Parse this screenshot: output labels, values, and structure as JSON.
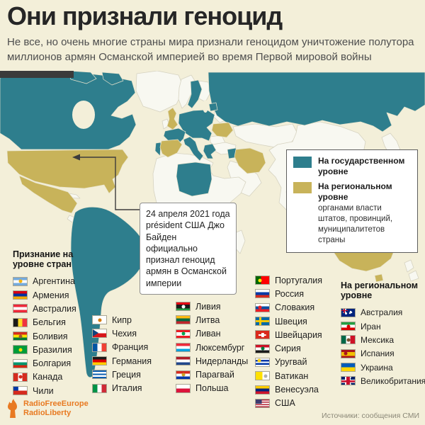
{
  "header": {
    "title": "Они признали геноцид",
    "subtitle": "Не все, но очень многие страны мира признали геноцидом уничтожение полутора миллионов армян Османской империей во время Первой мировой войны"
  },
  "legend": {
    "state": {
      "label": "На государственном уровне",
      "color": "#2e7e8d"
    },
    "regional": {
      "label": "На региональном уровне",
      "sub": "органами власти штатов, провинций, муниципалитетов страны",
      "color": "#c8b35a"
    }
  },
  "annotation": {
    "text": "24 апреля 2021 года président США Джо Байден официально признал геноцид армян в Османской империи"
  },
  "lists": {
    "country_level": {
      "header": "Признание на уровне стран",
      "col1": [
        {
          "label": "Аргентина",
          "flag": {
            "type": "h",
            "colors": [
              "#75aadb",
              "#ffffff",
              "#75aadb"
            ],
            "emblem": "#f6b40e"
          }
        },
        {
          "label": "Армения",
          "flag": {
            "type": "h",
            "colors": [
              "#d90012",
              "#0033a0",
              "#f2a800"
            ]
          }
        },
        {
          "label": "Австралия",
          "flag": {
            "type": "h",
            "colors": [
              "#ed2939",
              "#ffffff",
              "#ed2939"
            ]
          }
        },
        {
          "label": "Бельгия",
          "flag": {
            "type": "v",
            "colors": [
              "#1a1a1a",
              "#fdda24",
              "#ef3340"
            ]
          }
        },
        {
          "label": "Боливия",
          "flag": {
            "type": "h",
            "colors": [
              "#d52b1e",
              "#f9e300",
              "#007934"
            ],
            "emblem": "#a05a2c"
          }
        },
        {
          "label": "Бразилия",
          "flag": {
            "type": "solid",
            "colors": [
              "#009b3a"
            ],
            "emblem": "#fedf00"
          }
        },
        {
          "label": "Болгария",
          "flag": {
            "type": "h",
            "colors": [
              "#ffffff",
              "#00966e",
              "#d62612"
            ]
          }
        },
        {
          "label": "Канада",
          "flag": {
            "type": "v",
            "colors": [
              "#d52b1e",
              "#ffffff",
              "#d52b1e"
            ],
            "emblem": "#d52b1e"
          }
        },
        {
          "label": "Чили",
          "flag": {
            "type": "chile",
            "colors": [
              "#ffffff",
              "#d52b1e"
            ],
            "canton": "#0039a6"
          }
        }
      ],
      "col2": [
        {
          "label": "Кипр",
          "flag": {
            "type": "solid",
            "colors": [
              "#ffffff"
            ],
            "emblem": "#d57800"
          }
        },
        {
          "label": "Чехия",
          "flag": {
            "type": "cz",
            "colors": [
              "#ffffff",
              "#d7141a"
            ],
            "canton": "#11457e"
          }
        },
        {
          "label": "Франция",
          "flag": {
            "type": "v",
            "colors": [
              "#0055a4",
              "#ffffff",
              "#ef4135"
            ]
          }
        },
        {
          "label": "Германия",
          "flag": {
            "type": "h",
            "colors": [
              "#1a1a1a",
              "#dd0000",
              "#ffce00"
            ]
          }
        },
        {
          "label": "Греция",
          "flag": {
            "type": "h",
            "colors": [
              "#0d5eaf",
              "#ffffff",
              "#0d5eaf",
              "#ffffff",
              "#0d5eaf"
            ]
          }
        },
        {
          "label": "Италия",
          "flag": {
            "type": "v",
            "colors": [
              "#009246",
              "#ffffff",
              "#ce2b37"
            ]
          }
        }
      ],
      "col3": [
        {
          "label": "Ливия",
          "flag": {
            "type": "h",
            "colors": [
              "#e70013",
              "#1a1a1a",
              "#239e46"
            ],
            "weights": [
              1,
              2,
              1
            ],
            "emblem": "#ffffff"
          }
        },
        {
          "label": "Литва",
          "flag": {
            "type": "h",
            "colors": [
              "#fdb913",
              "#006a44",
              "#c1272d"
            ]
          }
        },
        {
          "label": "Ливан",
          "flag": {
            "type": "h",
            "colors": [
              "#ed1c24",
              "#ffffff",
              "#ed1c24"
            ],
            "weights": [
              1,
              2,
              1
            ],
            "emblem": "#00a651"
          }
        },
        {
          "label": "Люксембург",
          "flag": {
            "type": "h",
            "colors": [
              "#ed2939",
              "#ffffff",
              "#00a1de"
            ]
          }
        },
        {
          "label": "Нидерланды",
          "flag": {
            "type": "h",
            "colors": [
              "#ae1c28",
              "#ffffff",
              "#21468b"
            ]
          }
        },
        {
          "label": "Парагвай",
          "flag": {
            "type": "h",
            "colors": [
              "#d52b1e",
              "#ffffff",
              "#0038a8"
            ],
            "emblem": "#c9a227"
          }
        },
        {
          "label": "Польша",
          "flag": {
            "type": "h",
            "colors": [
              "#ffffff",
              "#dc143c"
            ]
          }
        }
      ],
      "col4": [
        {
          "label": "Португалия",
          "flag": {
            "type": "v",
            "colors": [
              "#006600",
              "#ff0000"
            ],
            "weights": [
              2,
              3
            ],
            "emblem": "#ffe500",
            "emblemPos": "left"
          }
        },
        {
          "label": "Россия",
          "flag": {
            "type": "h",
            "colors": [
              "#ffffff",
              "#0039a6",
              "#d52b1e"
            ]
          }
        },
        {
          "label": "Словакия",
          "flag": {
            "type": "h",
            "colors": [
              "#ffffff",
              "#0b4ea2",
              "#ee1c25"
            ],
            "emblem": "#ee1c25",
            "emblemPos": "left"
          }
        },
        {
          "label": "Швеция",
          "flag": {
            "type": "cross",
            "colors": [
              "#006aa7",
              "#fecc00"
            ]
          }
        },
        {
          "label": "Швейцария",
          "flag": {
            "type": "plus",
            "colors": [
              "#da291c",
              "#ffffff"
            ]
          }
        },
        {
          "label": "Сирия",
          "flag": {
            "type": "h",
            "colors": [
              "#ce1126",
              "#ffffff",
              "#1a1a1a"
            ],
            "emblem": "#007a3d"
          }
        },
        {
          "label": "Уругвай",
          "flag": {
            "type": "h",
            "colors": [
              "#ffffff",
              "#0038a8",
              "#ffffff",
              "#0038a8",
              "#ffffff"
            ],
            "emblem": "#fcd116",
            "emblemPos": "tl"
          }
        },
        {
          "label": "Ватикан",
          "flag": {
            "type": "v",
            "colors": [
              "#ffe000",
              "#ffffff"
            ],
            "emblem": "#b0b0b0",
            "emblemPos": "right"
          }
        },
        {
          "label": "Венесуэла",
          "flag": {
            "type": "h",
            "colors": [
              "#ffcc00",
              "#00247d",
              "#cf142b"
            ]
          }
        },
        {
          "label": "США",
          "flag": {
            "type": "usa",
            "colors": [
              "#b22234",
              "#ffffff"
            ],
            "canton": "#3c3b6e"
          }
        }
      ]
    },
    "regional": {
      "header": "На региональном уровне",
      "items": [
        {
          "label": "Австралия",
          "flag": {
            "type": "aus",
            "colors": [
              "#00247d"
            ]
          }
        },
        {
          "label": "Иран",
          "flag": {
            "type": "h",
            "colors": [
              "#239f40",
              "#ffffff",
              "#da0000"
            ],
            "emblem": "#da0000"
          }
        },
        {
          "label": "Мексика",
          "flag": {
            "type": "v",
            "colors": [
              "#006847",
              "#ffffff",
              "#ce1126"
            ],
            "emblem": "#7a5230"
          }
        },
        {
          "label": "Испания",
          "flag": {
            "type": "h",
            "colors": [
              "#aa151b",
              "#f1bf00",
              "#aa151b"
            ],
            "weights": [
              1,
              2,
              1
            ],
            "emblem": "#aa151b",
            "emblemPos": "left"
          }
        },
        {
          "label": "Украина",
          "flag": {
            "type": "h",
            "colors": [
              "#005bbb",
              "#ffd500"
            ]
          }
        },
        {
          "label": "Великобритания",
          "flag": {
            "type": "uk",
            "colors": [
              "#012169",
              "#ffffff",
              "#c8102e"
            ]
          }
        }
      ]
    }
  },
  "footer": {
    "logo_line1": "RadioFreeEurope",
    "logo_line2": "RadioLiberty",
    "source": "Источники: сообщения СМИ"
  }
}
